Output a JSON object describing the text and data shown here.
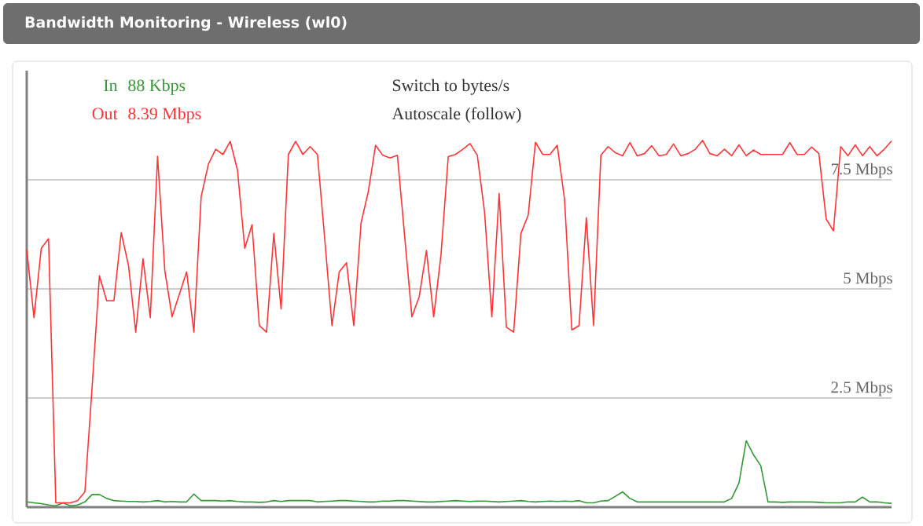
{
  "chart_data": {
    "type": "line",
    "title": "Bandwidth Monitoring - Wireless (wl0)",
    "categories": [
      null,
      null,
      null,
      null,
      null,
      null,
      null,
      null,
      null,
      null,
      null,
      null,
      null,
      null,
      null,
      null,
      null,
      null,
      null,
      null,
      null,
      null,
      null,
      null,
      null,
      null,
      null,
      null,
      null,
      null,
      null,
      null,
      null,
      null,
      null,
      null,
      null,
      null,
      null,
      null,
      null,
      null,
      null,
      null,
      null,
      null,
      null,
      null,
      null,
      null,
      null,
      null,
      null,
      null,
      null,
      null,
      null,
      null,
      null,
      null,
      null,
      null,
      null,
      null,
      null,
      null,
      null,
      null,
      null,
      null,
      null,
      null,
      null,
      null,
      null,
      null,
      null,
      null,
      null,
      null,
      null,
      null,
      null,
      null,
      null,
      null,
      null,
      null,
      null,
      null,
      null,
      null,
      null,
      null,
      null,
      null,
      null,
      null,
      null,
      null,
      null,
      null,
      null,
      null,
      null,
      null,
      null,
      null,
      null,
      null,
      null,
      null,
      null,
      null,
      null,
      null,
      null,
      null,
      null,
      null
    ],
    "series": [
      {
        "name": "In",
        "color": "#339933",
        "values": [
          0.12,
          0.1,
          0.08,
          0.05,
          0.03,
          0.1,
          0.03,
          0.05,
          0.12,
          0.29,
          0.29,
          0.2,
          0.15,
          0.14,
          0.13,
          0.13,
          0.12,
          0.13,
          0.15,
          0.12,
          0.13,
          0.12,
          0.12,
          0.3,
          0.15,
          0.15,
          0.15,
          0.14,
          0.15,
          0.13,
          0.12,
          0.12,
          0.11,
          0.12,
          0.15,
          0.13,
          0.15,
          0.15,
          0.15,
          0.15,
          0.12,
          0.13,
          0.14,
          0.15,
          0.15,
          0.14,
          0.13,
          0.12,
          0.12,
          0.14,
          0.14,
          0.15,
          0.15,
          0.14,
          0.13,
          0.12,
          0.12,
          0.13,
          0.14,
          0.15,
          0.14,
          0.13,
          0.14,
          0.14,
          0.13,
          0.12,
          0.13,
          0.14,
          0.15,
          0.13,
          0.12,
          0.13,
          0.14,
          0.13,
          0.14,
          0.13,
          0.15,
          0.1,
          0.1,
          0.14,
          0.15,
          0.25,
          0.35,
          0.2,
          0.12,
          0.12,
          0.12,
          0.12,
          0.12,
          0.12,
          0.12,
          0.12,
          0.12,
          0.12,
          0.12,
          0.12,
          0.12,
          0.2,
          0.55,
          1.52,
          1.2,
          0.95,
          0.12,
          0.12,
          0.11,
          0.12,
          0.12,
          0.12,
          0.12,
          0.11,
          0.1,
          0.1,
          0.1,
          0.12,
          0.12,
          0.23,
          0.12,
          0.12,
          0.1,
          0.088
        ]
      },
      {
        "name": "Out",
        "color": "#ff3333",
        "values": [
          5.9,
          4.34,
          5.93,
          6.15,
          0.1,
          0.1,
          0.1,
          0.15,
          0.35,
          2.76,
          5.3,
          4.73,
          4.73,
          6.29,
          5.54,
          4.01,
          5.69,
          4.34,
          8.04,
          5.42,
          4.36,
          4.88,
          5.39,
          4.01,
          7.11,
          7.86,
          8.2,
          8.08,
          8.38,
          7.72,
          5.93,
          6.47,
          4.16,
          4.01,
          6.27,
          4.54,
          8.08,
          8.38,
          8.08,
          8.26,
          8.08,
          6.15,
          4.16,
          5.39,
          5.6,
          4.16,
          6.51,
          7.23,
          8.29,
          8.06,
          8.0,
          8.06,
          6.21,
          4.36,
          4.82,
          5.88,
          4.36,
          5.78,
          8.03,
          8.08,
          8.2,
          8.33,
          8.06,
          6.75,
          4.36,
          7.19,
          4.12,
          4.01,
          6.27,
          6.69,
          8.36,
          8.08,
          8.08,
          8.29,
          7.05,
          4.06,
          4.16,
          6.63,
          4.16,
          8.06,
          8.26,
          8.12,
          8.05,
          8.35,
          8.05,
          8.1,
          8.28,
          8.05,
          8.08,
          8.32,
          8.05,
          8.1,
          8.2,
          8.4,
          8.1,
          8.05,
          8.2,
          8.05,
          8.3,
          8.05,
          8.18,
          8.08,
          8.08,
          8.08,
          8.08,
          8.35,
          8.08,
          8.08,
          8.25,
          8.1,
          6.6,
          6.33,
          8.26,
          8.05,
          8.3,
          8.05,
          8.26,
          8.05,
          8.2,
          8.39
        ]
      }
    ],
    "annotations": [
      "88 Kbps",
      "8.39 Mbps",
      "Switch to bytes/s",
      "Autoscale (follow)"
    ],
    "ylim": [
      0,
      10
    ],
    "yticks": [
      {
        "value": 2.5,
        "label": "2.5 Mbps"
      },
      {
        "value": 5,
        "label": "5 Mbps"
      },
      {
        "value": 7.5,
        "label": "7.5 Mbps"
      }
    ],
    "grid": "y",
    "legend": "top left",
    "tick_labels": "y"
  }
}
